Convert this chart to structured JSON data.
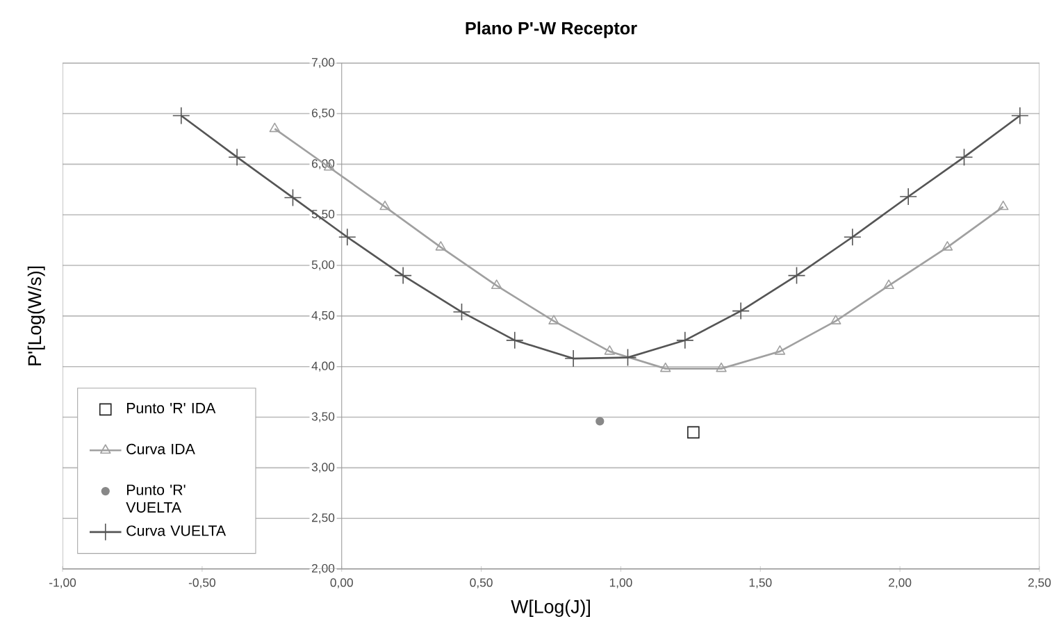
{
  "chart_data": {
    "type": "line",
    "title": "Plano P'-W Receptor",
    "xlabel": "W[Log(J)]",
    "ylabel": "P'[Log(W/s)]",
    "xlim": [
      -1,
      2.5
    ],
    "ylim": [
      2,
      7
    ],
    "xticks": [
      {
        "value": -1,
        "label": "-1,00"
      },
      {
        "value": -0.5,
        "label": "-0,50"
      },
      {
        "value": 0,
        "label": "0,00"
      },
      {
        "value": 0.5,
        "label": "0,50"
      },
      {
        "value": 1,
        "label": "1,00"
      },
      {
        "value": 1.5,
        "label": "1,50"
      },
      {
        "value": 2,
        "label": "2,00"
      },
      {
        "value": 2.5,
        "label": "2,50"
      }
    ],
    "yticks": [
      {
        "value": 2,
        "label": "2,00"
      },
      {
        "value": 2.5,
        "label": "2,50"
      },
      {
        "value": 3,
        "label": "3,00"
      },
      {
        "value": 3.5,
        "label": "3,50"
      },
      {
        "value": 4,
        "label": "4,00"
      },
      {
        "value": 4.5,
        "label": "4,50"
      },
      {
        "value": 5,
        "label": "5,00"
      },
      {
        "value": 5.5,
        "label": "5,50"
      },
      {
        "value": 6,
        "label": "6,00"
      },
      {
        "value": 6.5,
        "label": "6,50"
      },
      {
        "value": 7,
        "label": "7,00"
      }
    ],
    "grid": "y",
    "legend": "bottom left",
    "series": [
      {
        "name": "Punto 'R' IDA",
        "type": "scatter",
        "marker": "square",
        "color": "#222222",
        "x": [
          1.26
        ],
        "values": [
          3.35
        ]
      },
      {
        "name": "Curva IDA",
        "marker": "triangle",
        "color": "#a0a0a0",
        "x": [
          -0.24,
          -0.045,
          0.155,
          0.355,
          0.555,
          0.76,
          0.96,
          1.16,
          1.36,
          1.57,
          1.77,
          1.96,
          2.17,
          2.37
        ],
        "values": [
          6.35,
          5.97,
          5.58,
          5.18,
          4.8,
          4.45,
          4.15,
          3.98,
          3.98,
          4.15,
          4.45,
          4.8,
          5.18,
          5.58
        ]
      },
      {
        "name": "Punto 'R' VUELTA",
        "type": "scatter",
        "marker": "circle",
        "color": "#888888",
        "x": [
          0.925
        ],
        "values": [
          3.46
        ]
      },
      {
        "name": "Curva VUELTA",
        "marker": "cross",
        "color": "#555555",
        "x": [
          -0.575,
          -0.375,
          -0.175,
          0.02,
          0.22,
          0.43,
          0.62,
          0.83,
          1.025,
          1.23,
          1.43,
          1.63,
          1.83,
          2.03,
          2.23,
          2.43
        ],
        "values": [
          6.48,
          6.07,
          5.67,
          5.28,
          4.9,
          4.54,
          4.26,
          4.08,
          4.09,
          4.26,
          4.55,
          4.9,
          5.28,
          5.68,
          6.07,
          6.48
        ]
      }
    ]
  }
}
